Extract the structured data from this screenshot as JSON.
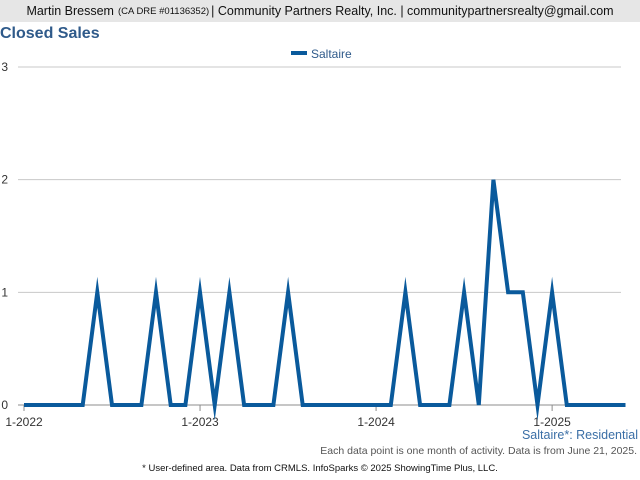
{
  "header": {
    "agent_name": "Martin Bressem",
    "dre": "(CA DRE #01136352)",
    "company_contact": "| Community Partners Realty, Inc. | communitypartnersrealty@gmail.com"
  },
  "colors": {
    "series": "#0a5a9c",
    "title": "#2f5a8a",
    "grid": "#c8c8c8",
    "header_bg": "#e6e6e6"
  },
  "chart_data": {
    "type": "line",
    "title": "Closed Sales",
    "xlabel": "",
    "ylabel": "",
    "ylim": [
      0,
      3
    ],
    "y_ticks": [
      "0",
      "1",
      "2",
      "3"
    ],
    "x_ticks": [
      "1-2022",
      "1-2023",
      "1-2024",
      "1-2025"
    ],
    "x_tick_months": [
      0,
      12,
      24,
      36
    ],
    "grid": true,
    "legend_position": "top-center",
    "series": [
      {
        "name": "Saltaire",
        "months": [
          "1-2022",
          "2-2022",
          "3-2022",
          "4-2022",
          "5-2022",
          "6-2022",
          "7-2022",
          "8-2022",
          "9-2022",
          "10-2022",
          "11-2022",
          "12-2022",
          "1-2023",
          "2-2023",
          "3-2023",
          "4-2023",
          "5-2023",
          "6-2023",
          "7-2023",
          "8-2023",
          "9-2023",
          "10-2023",
          "11-2023",
          "12-2023",
          "1-2024",
          "2-2024",
          "3-2024",
          "4-2024",
          "5-2024",
          "6-2024",
          "7-2024",
          "8-2024",
          "9-2024",
          "10-2024",
          "11-2024",
          "12-2024",
          "1-2025",
          "2-2025",
          "3-2025",
          "4-2025",
          "5-2025",
          "6-2025"
        ],
        "values": [
          0,
          0,
          0,
          0,
          0,
          1,
          0,
          0,
          0,
          1,
          0,
          0,
          1,
          0,
          1,
          0,
          0,
          0,
          1,
          0,
          0,
          0,
          0,
          0,
          0,
          0,
          1,
          0,
          0,
          0,
          1,
          0,
          2,
          1,
          1,
          0,
          1,
          0,
          0,
          0,
          0,
          0
        ]
      }
    ]
  },
  "footer": {
    "property_type": "Saltaire*: Residential",
    "data_note": "Each data point is one month of activity. Data is from June 21, 2025.",
    "credit": "* User-defined area. Data from CRMLS. InfoSparks © 2025 ShowingTime Plus, LLC."
  }
}
